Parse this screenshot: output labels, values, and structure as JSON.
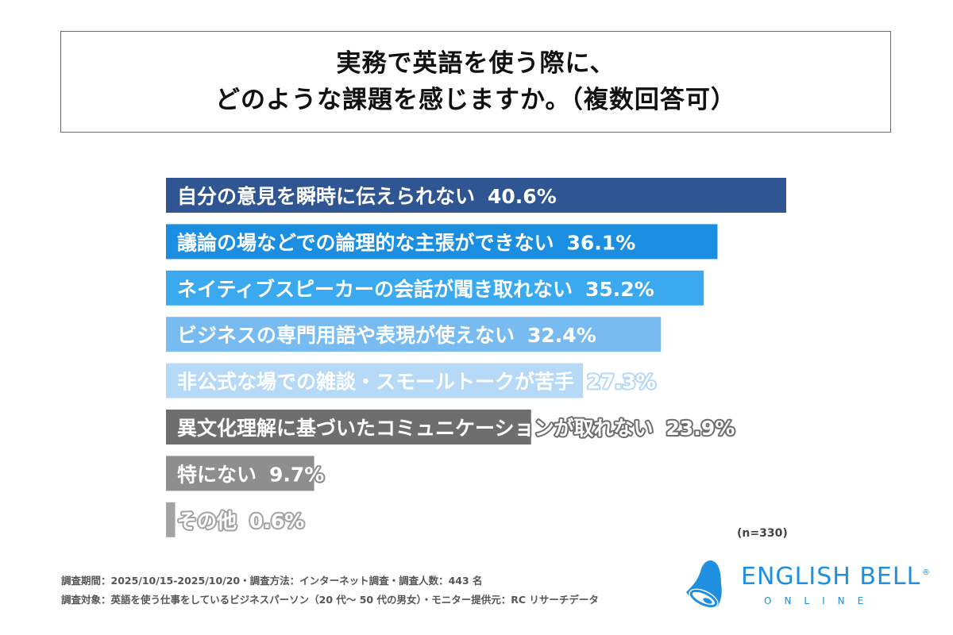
{
  "title": {
    "line1": "実務で英語を使う際に、",
    "line2": "どのような課題を感じますか。（複数回答可）"
  },
  "chart_data": {
    "type": "bar",
    "orientation": "horizontal",
    "title": "実務で英語を使う際に、どのような課題を感じますか。（複数回答可）",
    "categories": [
      "自分の意見を瞬時に伝えられない",
      "議論の場などでの論理的な主張ができない",
      "ネイティブスピーカーの会話が聞き取れない",
      "ビジネスの専門用語や表現が使えない",
      "非公式な場での雑談・スモールトークが苦手",
      "異文化理解に基づいたコミュニケーションが取れない",
      "特にない",
      "その他"
    ],
    "values": [
      40.6,
      36.1,
      35.2,
      32.4,
      27.3,
      23.9,
      9.7,
      0.6
    ],
    "value_labels": [
      "40.6%",
      "36.1%",
      "35.2%",
      "32.4%",
      "27.3%",
      "23.9%",
      "9.7%",
      "0.6%"
    ],
    "colors": [
      "#2f5592",
      "#1a8fe2",
      "#3aa9ef",
      "#78bbf0",
      "#b5d9f6",
      "#6e6e6e",
      "#8e8e8e",
      "#a3a3a3"
    ],
    "unit": "%",
    "grid": false,
    "legend": "none"
  },
  "n_note": "(n=330)",
  "footer": {
    "line1": "調査期間：2025/10/15-2025/10/20・調査方法：インターネット調査・調査人数：443 名",
    "line2": "調査対象：英語を使う仕事をしているビジネスパーソン（20 代〜 50 代の男女）・モニター提供元：RC リサーチデータ"
  },
  "logo": {
    "main": "ENGLISH BELL",
    "registered": "®",
    "sub": "ONLINE",
    "color": "#1f8fe0",
    "icon": "bell-icon"
  }
}
